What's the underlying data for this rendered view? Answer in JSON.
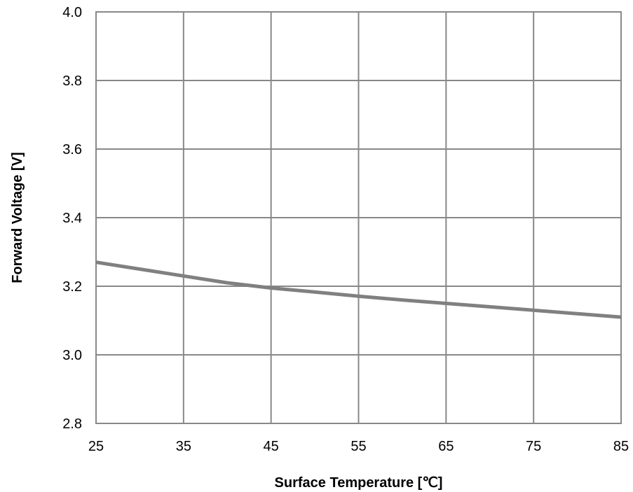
{
  "chart_data": {
    "type": "line",
    "title": "",
    "xlabel": "Surface Temperature [℃]",
    "ylabel": "Forward Voltage [V]",
    "xlim": [
      25,
      85
    ],
    "ylim": [
      2.8,
      4.0
    ],
    "xticks": [
      "25",
      "35",
      "45",
      "55",
      "65",
      "75",
      "85"
    ],
    "yticks": [
      "2.8",
      "3.0",
      "3.2",
      "3.4",
      "3.6",
      "3.8",
      "4.0"
    ],
    "grid": true,
    "legend": "none",
    "series": [
      {
        "color": "#808080",
        "x": [
          25,
          30,
          35,
          40,
          45,
          50,
          55,
          60,
          65,
          70,
          75,
          80,
          85
        ],
        "y": [
          3.27,
          3.25,
          3.23,
          3.21,
          3.195,
          3.183,
          3.171,
          3.16,
          3.15,
          3.14,
          3.13,
          3.12,
          3.11
        ]
      }
    ]
  }
}
